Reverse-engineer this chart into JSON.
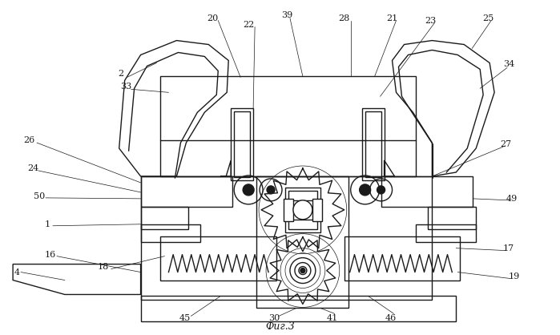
{
  "title": "Фиг.3",
  "background_color": "#ffffff",
  "line_color": "#1a1a1a",
  "lw": 1.0,
  "thin": 0.5,
  "figsize": [
    6.99,
    4.18
  ],
  "dpi": 100
}
